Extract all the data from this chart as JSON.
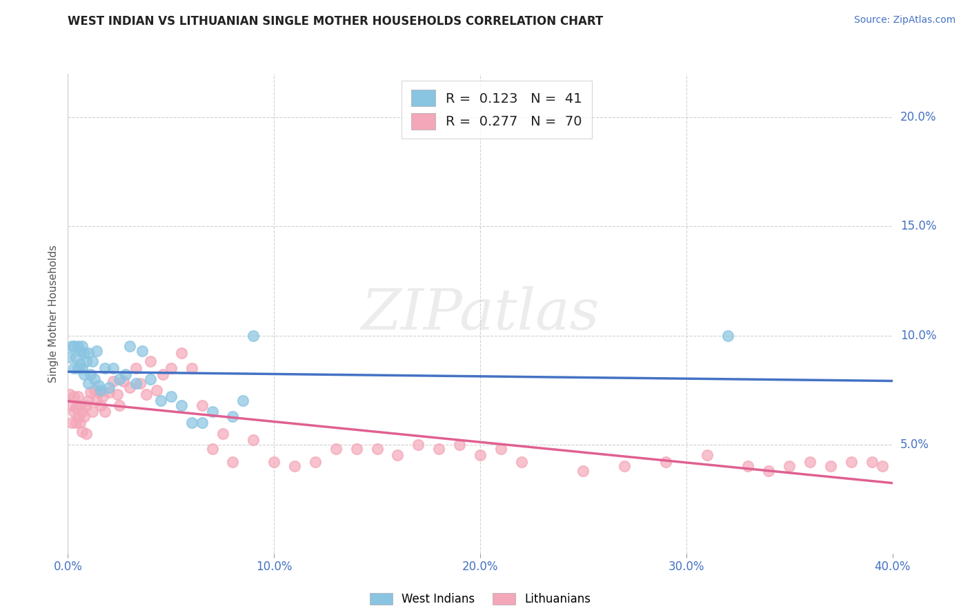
{
  "title": "WEST INDIAN VS LITHUANIAN SINGLE MOTHER HOUSEHOLDS CORRELATION CHART",
  "source_text": "Source: ZipAtlas.com",
  "ylabel": "Single Mother Households",
  "xlim": [
    0.0,
    0.4
  ],
  "ylim": [
    0.0,
    0.22
  ],
  "x_ticks": [
    0.0,
    0.1,
    0.2,
    0.3,
    0.4
  ],
  "x_tick_labels": [
    "0.0%",
    "10.0%",
    "20.0%",
    "30.0%",
    "40.0%"
  ],
  "y_ticks": [
    0.05,
    0.1,
    0.15,
    0.2
  ],
  "y_tick_labels": [
    "5.0%",
    "10.0%",
    "15.0%",
    "20.0%"
  ],
  "west_indian_color": "#89c4e1",
  "lithuanian_color": "#f4a7b9",
  "west_indian_line_color": "#4472c4",
  "lithuanian_line_color": "#e06090",
  "R_west_indian": 0.123,
  "N_west_indian": 41,
  "R_lithuanian": 0.277,
  "N_lithuanian": 70,
  "legend_label_1": "West Indians",
  "legend_label_2": "Lithuanians",
  "watermark": "ZIPatlas",
  "background_color": "#ffffff",
  "grid_color": "#cccccc",
  "west_indian_x": [
    0.001,
    0.002,
    0.003,
    0.003,
    0.004,
    0.005,
    0.005,
    0.006,
    0.006,
    0.007,
    0.007,
    0.008,
    0.008,
    0.009,
    0.01,
    0.01,
    0.011,
    0.012,
    0.013,
    0.014,
    0.015,
    0.016,
    0.018,
    0.02,
    0.022,
    0.025,
    0.028,
    0.03,
    0.033,
    0.036,
    0.04,
    0.045,
    0.05,
    0.055,
    0.06,
    0.065,
    0.07,
    0.08,
    0.085,
    0.09,
    0.32
  ],
  "west_indian_y": [
    0.09,
    0.095,
    0.085,
    0.095,
    0.09,
    0.085,
    0.095,
    0.087,
    0.093,
    0.085,
    0.095,
    0.082,
    0.092,
    0.088,
    0.078,
    0.092,
    0.082,
    0.088,
    0.08,
    0.093,
    0.077,
    0.075,
    0.085,
    0.076,
    0.085,
    0.08,
    0.082,
    0.095,
    0.078,
    0.093,
    0.08,
    0.07,
    0.072,
    0.068,
    0.06,
    0.06,
    0.065,
    0.063,
    0.07,
    0.1,
    0.1
  ],
  "lithuanian_x": [
    0.001,
    0.002,
    0.002,
    0.003,
    0.003,
    0.004,
    0.004,
    0.005,
    0.005,
    0.006,
    0.006,
    0.007,
    0.007,
    0.008,
    0.009,
    0.009,
    0.01,
    0.011,
    0.012,
    0.013,
    0.014,
    0.015,
    0.016,
    0.017,
    0.018,
    0.02,
    0.022,
    0.024,
    0.025,
    0.027,
    0.03,
    0.033,
    0.035,
    0.038,
    0.04,
    0.043,
    0.046,
    0.05,
    0.055,
    0.06,
    0.065,
    0.07,
    0.075,
    0.08,
    0.09,
    0.1,
    0.11,
    0.12,
    0.13,
    0.14,
    0.15,
    0.16,
    0.17,
    0.18,
    0.19,
    0.2,
    0.21,
    0.22,
    0.25,
    0.27,
    0.29,
    0.31,
    0.33,
    0.34,
    0.35,
    0.36,
    0.37,
    0.38,
    0.39,
    0.395
  ],
  "lithuanian_y": [
    0.073,
    0.06,
    0.068,
    0.072,
    0.065,
    0.06,
    0.067,
    0.063,
    0.072,
    0.06,
    0.068,
    0.065,
    0.056,
    0.063,
    0.055,
    0.068,
    0.07,
    0.074,
    0.065,
    0.075,
    0.07,
    0.074,
    0.068,
    0.072,
    0.065,
    0.074,
    0.079,
    0.073,
    0.068,
    0.079,
    0.076,
    0.085,
    0.078,
    0.073,
    0.088,
    0.075,
    0.082,
    0.085,
    0.092,
    0.085,
    0.068,
    0.048,
    0.055,
    0.042,
    0.052,
    0.042,
    0.04,
    0.042,
    0.048,
    0.048,
    0.048,
    0.045,
    0.05,
    0.048,
    0.05,
    0.045,
    0.048,
    0.042,
    0.038,
    0.04,
    0.042,
    0.045,
    0.04,
    0.038,
    0.04,
    0.042,
    0.04,
    0.042,
    0.042,
    0.04
  ]
}
